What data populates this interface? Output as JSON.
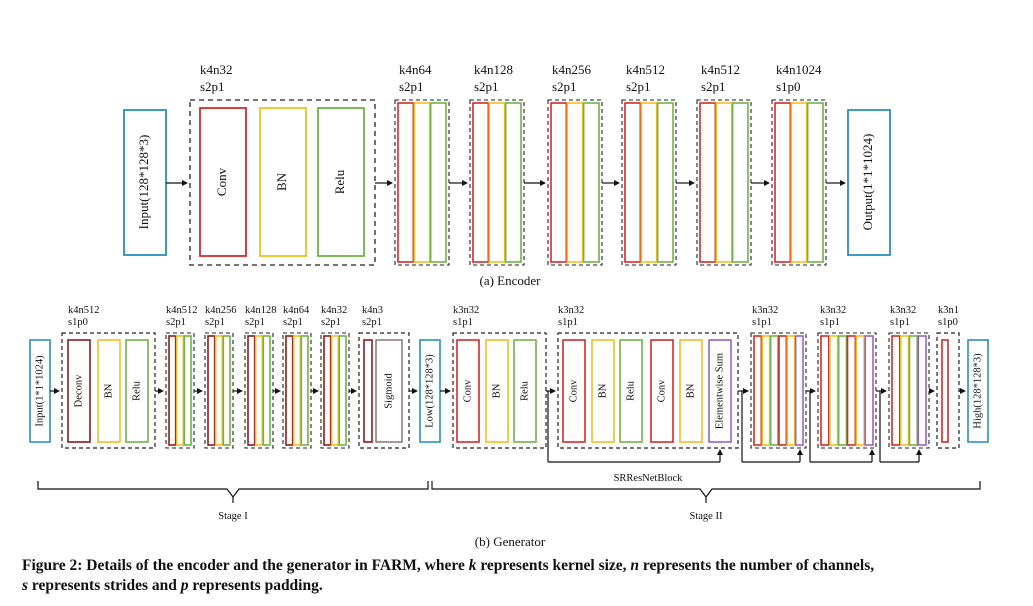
{
  "encoder": {
    "input_label": "Input(128*128*3)",
    "output_label": "Output(1*1*1024)",
    "stage1": {
      "params": [
        "k4n32",
        "s2p1"
      ],
      "layers": [
        "Conv",
        "BN",
        "Relu"
      ]
    },
    "blocks": [
      {
        "params": [
          "k4n64",
          "s2p1"
        ]
      },
      {
        "params": [
          "k4n128",
          "s2p1"
        ]
      },
      {
        "params": [
          "k4n256",
          "s2p1"
        ]
      },
      {
        "params": [
          "k4n512",
          "s2p1"
        ]
      },
      {
        "params": [
          "k4n512",
          "s2p1"
        ]
      },
      {
        "params": [
          "k4n1024",
          "s1p0"
        ]
      }
    ],
    "subcaption": "(a) Encoder"
  },
  "generator": {
    "input_label": "Input(1*1*1024)",
    "low_label": "Low(128*128*3)",
    "high_label": "High(128*128*3)",
    "stage1_first": {
      "params": [
        "k4n512",
        "s1p0"
      ],
      "layers": [
        "Deconv",
        "BN",
        "Relu"
      ]
    },
    "stage1_blocks": [
      {
        "params": [
          "k4n512",
          "s2p1"
        ]
      },
      {
        "params": [
          "k4n256",
          "s2p1"
        ]
      },
      {
        "params": [
          "k4n128",
          "s2p1"
        ]
      },
      {
        "params": [
          "k4n64",
          "s2p1"
        ]
      },
      {
        "params": [
          "k4n32",
          "s2p1"
        ]
      }
    ],
    "stage1_last": {
      "params": [
        "k4n3",
        "s2p1"
      ],
      "layer": "Sigmoid"
    },
    "stage2_first": {
      "params": [
        "k3n32",
        "s1p1"
      ],
      "layers": [
        "Conv",
        "BN",
        "Relu"
      ]
    },
    "resblock": {
      "params": [
        "k3n32",
        "s1p1"
      ],
      "layers": [
        "Conv",
        "BN",
        "Relu",
        "Conv",
        "BN",
        "Elementwise Sum"
      ]
    },
    "resblock_small_params": [
      [
        "k3n32",
        "s1p1"
      ],
      [
        "k3n32",
        "s1p1"
      ]
    ],
    "final_conv": {
      "params": [
        "k3n32",
        "s1p1"
      ]
    },
    "output_conv": {
      "params": [
        "k3n1",
        "s1p0"
      ]
    },
    "srres_label": "SRResNetBlock",
    "stage1_label": "Stage I",
    "stage2_label": "Stage II",
    "subcaption": "(b) Generator"
  },
  "caption": {
    "prefix": "Figure 2: Details of the encoder and the generator in FARM, where ",
    "k": "k",
    "k_text": " represents kernel size, ",
    "n": "n",
    "n_text": " represents the number of channels, ",
    "s": "s",
    "s_text": " represents strides and ",
    "p": "p",
    "p_text": " represents padding."
  },
  "colors": {
    "conv": "#d42a2a",
    "bn": "#f0c020",
    "relu": "#6fb34a",
    "sum": "#9b5fc6",
    "sigmoid": "#8a6a6a",
    "io": "#2a8fbd",
    "deconv": "#8a1d1d",
    "text": "#111111"
  }
}
